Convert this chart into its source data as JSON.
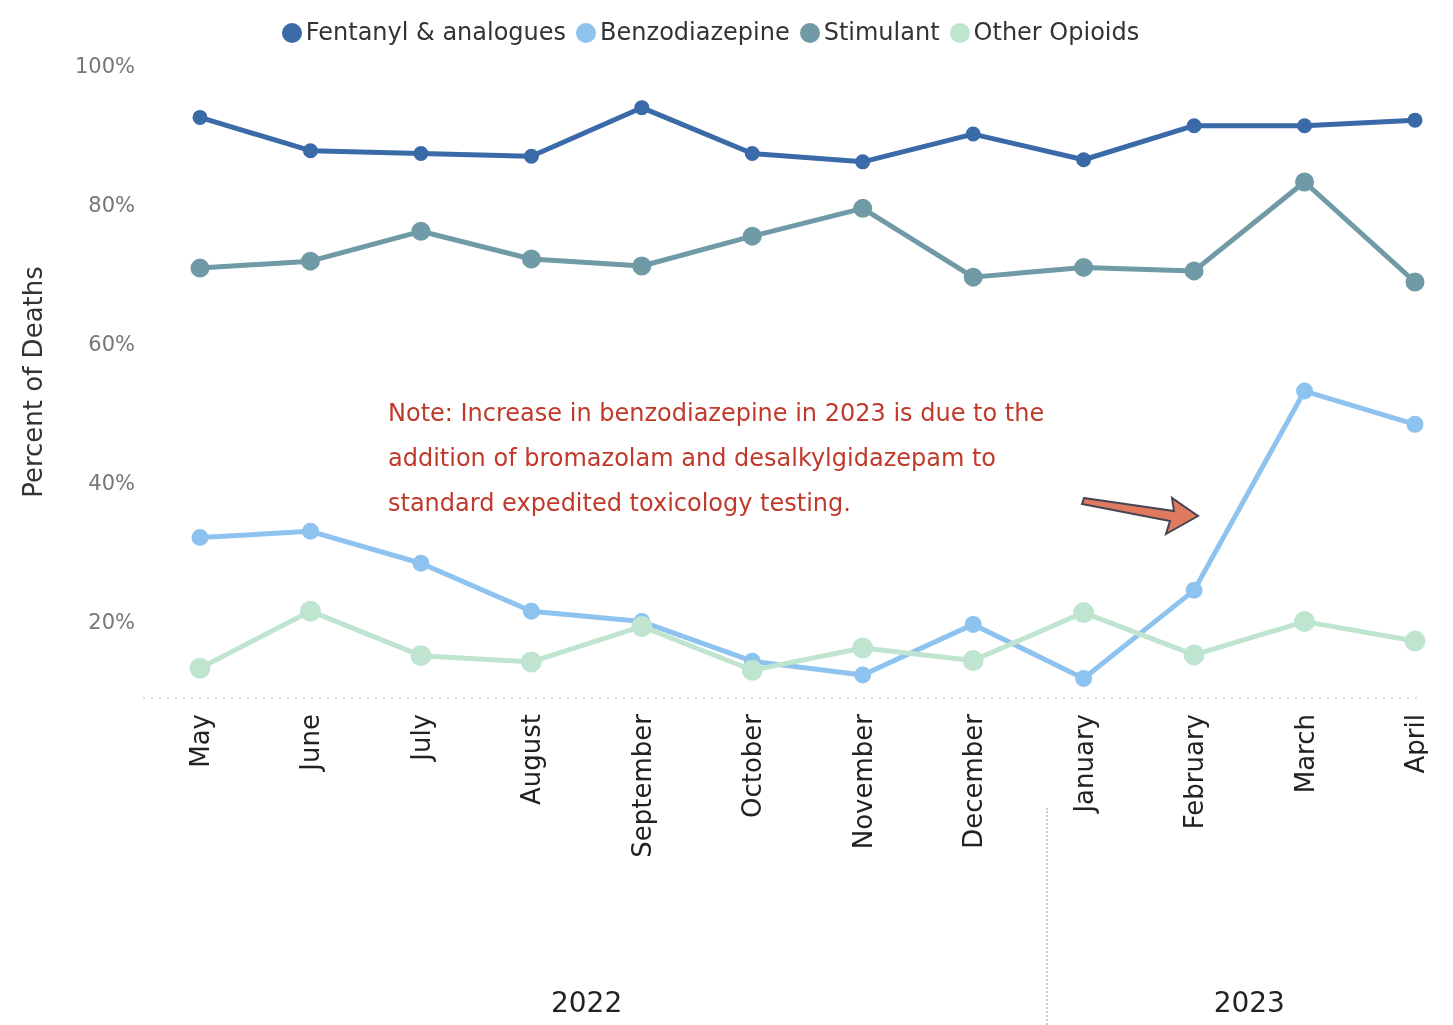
{
  "chart_data": {
    "type": "line",
    "ylabel": "Percent of Deaths",
    "categories": [
      "May",
      "June",
      "July",
      "August",
      "September",
      "October",
      "November",
      "December",
      "January",
      "February",
      "March",
      "April"
    ],
    "series": [
      {
        "name": "Fentanyl & analogues",
        "color": "#3a6aa8",
        "values": [
          92.6,
          87.8,
          87.4,
          87.0,
          94.0,
          87.4,
          86.2,
          90.2,
          86.5,
          91.4,
          91.4,
          92.2
        ]
      },
      {
        "name": "Benzodiazepine",
        "color": "#8ec3f0",
        "values": [
          32.1,
          33.0,
          28.4,
          21.5,
          20.0,
          14.3,
          12.3,
          19.6,
          11.8,
          24.5,
          53.2,
          48.4
        ]
      },
      {
        "name": "Stimulant",
        "color": "#6f9aa6",
        "values": [
          70.9,
          71.9,
          76.2,
          72.2,
          71.2,
          75.5,
          79.5,
          69.6,
          71.0,
          70.5,
          83.3,
          68.9
        ]
      },
      {
        "name": "Other Opioids",
        "color": "#bfe5d0",
        "values": [
          13.3,
          21.5,
          15.1,
          14.2,
          19.3,
          13.0,
          16.2,
          14.4,
          21.3,
          15.2,
          20.0,
          17.2
        ]
      }
    ],
    "ylim": [
      9,
      100
    ],
    "yticks": [
      {
        "value": 20,
        "label": "20%"
      },
      {
        "value": 40,
        "label": "40%"
      },
      {
        "value": 60,
        "label": "60%"
      },
      {
        "value": 80,
        "label": "80%"
      },
      {
        "value": 100,
        "label": "100%"
      }
    ],
    "grid": false,
    "legend": "top",
    "marker": "circle",
    "line_style": "solid",
    "annotations": [
      "Note: Increase in benzodiazepine in 2023 is due to the addition of bromazolam and desalkylgidazepam to standard expedited toxicology testing.",
      "2022",
      "2023"
    ]
  }
}
